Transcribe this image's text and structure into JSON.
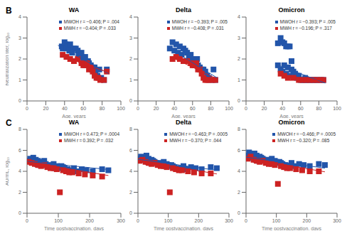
{
  "chart_data": [
    {
      "type": "scatter",
      "title": "WA",
      "annotations": [
        "B"
      ],
      "x_label": "Age, years",
      "y_label": "Neutralization titer, log₁₀",
      "xlim": [
        0,
        100
      ],
      "ylim": [
        0,
        4
      ],
      "xticks": [
        0,
        20,
        40,
        60,
        80,
        100
      ],
      "yticks": [
        0,
        1,
        2,
        3,
        4
      ],
      "grid": false,
      "legend": "upper right",
      "series": [
        {
          "name": "MWOH r = −0.406; P = .004",
          "color": "#2255aa",
          "marker": "square",
          "x": [
            37,
            38,
            40,
            41,
            42,
            44,
            45,
            46,
            48,
            50,
            52,
            54,
            55,
            57,
            58,
            60,
            61,
            62,
            63,
            64,
            65,
            66,
            67,
            68,
            69,
            70,
            72,
            73,
            75,
            77,
            79,
            82,
            85
          ],
          "values": [
            2.6,
            2.5,
            2.8,
            2.7,
            2.5,
            2.6,
            2.4,
            2.7,
            2.3,
            2.5,
            2.5,
            2.4,
            2.2,
            2.1,
            2.3,
            2.0,
            1.9,
            2.1,
            1.8,
            1.7,
            1.9,
            1.8,
            1.6,
            1.7,
            1.5,
            1.6,
            1.6,
            1.4,
            1.2,
            1.5,
            1.1,
            1.0,
            1.5
          ]
        },
        {
          "name": "MWH r = −0.404; P = .033",
          "color": "#cc2222",
          "marker": "square",
          "x": [
            38,
            42,
            46,
            50,
            54,
            58,
            60,
            62,
            64,
            66,
            68,
            70,
            72,
            74,
            76,
            78,
            82,
            85
          ],
          "values": [
            2.2,
            2.1,
            2.0,
            1.9,
            2.0,
            1.8,
            1.7,
            1.7,
            1.8,
            1.5,
            1.6,
            1.4,
            1.2,
            1.1,
            1.1,
            1.0,
            1.0,
            1.4
          ]
        },
        {
          "type": "line",
          "color": "#2255aa",
          "x": [
            33,
            87
          ],
          "values": [
            2.65,
            1.3
          ]
        },
        {
          "type": "line",
          "color": "#cc2222",
          "x": [
            36,
            87
          ],
          "values": [
            2.15,
            1.35
          ]
        }
      ]
    },
    {
      "type": "scatter",
      "title": "Delta",
      "x_label": "Age, years",
      "xlim": [
        0,
        100
      ],
      "ylim": [
        0,
        4
      ],
      "xticks": [
        0,
        20,
        40,
        60,
        80,
        100
      ],
      "yticks": [
        0,
        1,
        2,
        3,
        4
      ],
      "grid": false,
      "legend": "upper right",
      "series": [
        {
          "name": "MWOH r = −0.393; P = .005",
          "color": "#2255aa",
          "marker": "square",
          "x": [
            35,
            38,
            40,
            42,
            44,
            46,
            48,
            50,
            52,
            54,
            56,
            58,
            60,
            62,
            64,
            65,
            66,
            68,
            70,
            72,
            74,
            76,
            78,
            80,
            83,
            85
          ],
          "values": [
            2.5,
            2.8,
            2.4,
            2.7,
            2.3,
            2.6,
            2.2,
            2.5,
            2.4,
            2.3,
            2.1,
            2.2,
            2.0,
            1.9,
            1.8,
            2.0,
            1.7,
            1.6,
            1.5,
            1.5,
            1.4,
            1.2,
            1.1,
            1.0,
            1.5,
            1.0
          ]
        },
        {
          "name": "MWH r = −0.408; P = .031",
          "color": "#cc2222",
          "marker": "square",
          "x": [
            38,
            42,
            46,
            50,
            54,
            58,
            60,
            62,
            64,
            66,
            68,
            70,
            72,
            74,
            76,
            78,
            82,
            85
          ],
          "values": [
            2.0,
            2.1,
            2.0,
            1.9,
            1.9,
            1.8,
            1.7,
            1.7,
            1.8,
            1.5,
            1.5,
            1.3,
            1.1,
            1.0,
            1.0,
            1.0,
            1.0,
            1.0
          ]
        },
        {
          "type": "line",
          "color": "#2255aa",
          "x": [
            33,
            87
          ],
          "values": [
            2.55,
            1.1
          ]
        },
        {
          "type": "line",
          "color": "#cc2222",
          "x": [
            36,
            87
          ],
          "values": [
            2.1,
            1.05
          ]
        }
      ]
    },
    {
      "type": "scatter",
      "title": "Omicron",
      "x_label": "Age, years",
      "xlim": [
        0,
        100
      ],
      "ylim": [
        0,
        4
      ],
      "xticks": [
        0,
        20,
        40,
        60,
        80,
        100
      ],
      "yticks": [
        0,
        1,
        2,
        3,
        4
      ],
      "grid": false,
      "legend": "upper right",
      "series": [
        {
          "name": "MWOH r = −0.393; P = .005",
          "color": "#2255aa",
          "marker": "square",
          "x": [
            35,
            38,
            40,
            42,
            44,
            46,
            48,
            50,
            52,
            54,
            56,
            58,
            60,
            62,
            64,
            65,
            66,
            68,
            70,
            72,
            74,
            76,
            78,
            80,
            83,
            85,
            35,
            38,
            40,
            42,
            44,
            46,
            48,
            50
          ],
          "values": [
            1.7,
            1.5,
            1.4,
            1.7,
            1.3,
            1.6,
            1.2,
            1.5,
            1.4,
            1.3,
            1.1,
            1.2,
            1.0,
            1.0,
            1.0,
            1.1,
            1.0,
            1.0,
            1.0,
            1.0,
            1.0,
            1.0,
            1.0,
            1.0,
            1.0,
            1.0,
            2.75,
            3.0,
            2.8,
            2.75,
            2.6,
            2.6,
            2.6,
            1.9
          ]
        },
        {
          "name": "MWH r = −0.196; P = .317",
          "color": "#cc2222",
          "marker": "square",
          "x": [
            38,
            42,
            46,
            52,
            58,
            62,
            66,
            70,
            74,
            78,
            82,
            85
          ],
          "values": [
            1.3,
            1.2,
            1.1,
            1.1,
            1.0,
            1.0,
            1.0,
            1.0,
            1.0,
            1.0,
            1.0,
            1.0
          ]
        },
        {
          "type": "line",
          "color": "#2255aa",
          "x": [
            33,
            87
          ],
          "values": [
            1.75,
            0.85
          ]
        },
        {
          "type": "line",
          "color": "#cc2222",
          "x": [
            36,
            87
          ],
          "values": [
            1.25,
            0.95
          ]
        }
      ]
    },
    {
      "type": "scatter",
      "title": "WA",
      "annotations": [
        "C"
      ],
      "x_label": "Time postvaccination, days",
      "y_label": "AU/mL, log₁₀",
      "xlim": [
        0,
        300
      ],
      "ylim": [
        0,
        8
      ],
      "xticks": [
        0,
        100,
        200,
        300
      ],
      "yticks": [
        0,
        2,
        4,
        6,
        8
      ],
      "grid": false,
      "legend": "upper right",
      "series": [
        {
          "name": "MWOH r = 0.473; P = .0004",
          "color": "#2255aa",
          "marker": "square",
          "x": [
            5,
            10,
            15,
            20,
            25,
            28,
            32,
            35,
            40,
            45,
            50,
            55,
            60,
            65,
            70,
            75,
            80,
            85,
            90,
            95,
            100,
            105,
            110,
            115,
            120,
            130,
            140,
            150,
            160,
            175,
            190,
            210,
            240,
            260
          ],
          "values": [
            5.0,
            5.2,
            4.9,
            5.3,
            4.8,
            5.1,
            4.7,
            5.0,
            4.6,
            4.9,
            4.8,
            5.0,
            4.7,
            4.5,
            4.6,
            4.4,
            4.5,
            4.7,
            4.3,
            4.5,
            4.4,
            4.3,
            4.5,
            4.4,
            4.3,
            4.2,
            4.1,
            4.3,
            4.0,
            4.2,
            4.1,
            4.0,
            4.2,
            4.1
          ]
        },
        {
          "name": "MWH r = 0.392; P = .032",
          "color": "#cc2222",
          "marker": "square",
          "x": [
            5,
            15,
            25,
            35,
            45,
            55,
            65,
            75,
            85,
            95,
            115,
            125,
            135,
            145,
            165,
            185,
            210,
            240,
            105
          ],
          "values": [
            4.9,
            4.8,
            4.7,
            4.6,
            4.5,
            4.6,
            4.4,
            4.3,
            4.3,
            4.2,
            4.1,
            4.0,
            3.9,
            3.9,
            3.8,
            3.7,
            3.6,
            3.5,
            2.0
          ]
        },
        {
          "type": "line",
          "color": "#2255aa",
          "x": [
            0,
            260
          ],
          "values": [
            4.95,
            4.17
          ]
        },
        {
          "type": "line",
          "color": "#cc2222",
          "x": [
            0,
            260
          ],
          "values": [
            4.9,
            3.6
          ]
        }
      ]
    },
    {
      "type": "scatter",
      "title": "Delta",
      "x_label": "Time postvaccination, days",
      "xlim": [
        0,
        300
      ],
      "ylim": [
        0,
        8
      ],
      "xticks": [
        0,
        100,
        200,
        300
      ],
      "yticks": [
        0,
        2,
        4,
        6,
        8
      ],
      "grid": false,
      "legend": "upper right",
      "series": [
        {
          "name": "MWOH r = −0.463; P = .0005",
          "color": "#2255aa",
          "marker": "square",
          "x": [
            5,
            10,
            15,
            20,
            25,
            28,
            32,
            35,
            40,
            45,
            50,
            55,
            60,
            65,
            70,
            75,
            80,
            85,
            90,
            95,
            100,
            105,
            110,
            115,
            120,
            130,
            140,
            150,
            160,
            175,
            190,
            210,
            240,
            260
          ],
          "values": [
            5.2,
            5.4,
            5.1,
            5.3,
            5.0,
            5.5,
            4.9,
            5.2,
            4.8,
            5.1,
            5.0,
            4.9,
            4.8,
            4.7,
            4.8,
            4.6,
            4.7,
            4.9,
            4.5,
            4.7,
            4.6,
            4.5,
            4.6,
            4.5,
            4.4,
            4.3,
            4.3,
            4.5,
            4.2,
            4.4,
            4.3,
            4.2,
            4.4,
            4.3
          ]
        },
        {
          "name": "MWH r = −0.370; P = .044",
          "color": "#cc2222",
          "marker": "square",
          "x": [
            5,
            15,
            25,
            35,
            45,
            55,
            65,
            75,
            85,
            95,
            115,
            125,
            135,
            145,
            165,
            185,
            210,
            240,
            105
          ],
          "values": [
            5.0,
            5.1,
            4.9,
            4.8,
            4.7,
            4.8,
            4.6,
            4.5,
            4.5,
            4.4,
            4.3,
            4.2,
            4.1,
            4.1,
            4.0,
            3.9,
            3.8,
            3.8,
            2.0
          ]
        },
        {
          "type": "line",
          "color": "#2255aa",
          "x": [
            0,
            260
          ],
          "values": [
            5.15,
            4.1
          ]
        },
        {
          "type": "line",
          "color": "#cc2222",
          "x": [
            0,
            260
          ],
          "values": [
            5.05,
            3.75
          ]
        }
      ]
    },
    {
      "type": "scatter",
      "title": "Omicron",
      "x_label": "Time postvaccination, days",
      "xlim": [
        0,
        300
      ],
      "ylim": [
        0,
        8
      ],
      "xticks": [
        0,
        100,
        200,
        300
      ],
      "yticks": [
        0,
        2,
        4,
        6,
        8
      ],
      "grid": false,
      "legend": "upper right",
      "series": [
        {
          "name": "MWOH r = −0.466; P = .0005",
          "color": "#2255aa",
          "marker": "square",
          "x": [
            5,
            10,
            15,
            20,
            25,
            28,
            32,
            35,
            40,
            45,
            50,
            55,
            60,
            65,
            70,
            75,
            80,
            85,
            90,
            95,
            100,
            105,
            110,
            115,
            120,
            130,
            140,
            150,
            160,
            175,
            190,
            210,
            240,
            260
          ],
          "values": [
            5.5,
            5.8,
            5.3,
            5.6,
            5.2,
            5.7,
            5.1,
            5.5,
            5.0,
            5.4,
            5.3,
            5.2,
            5.1,
            5.0,
            5.1,
            4.9,
            5.0,
            5.2,
            4.8,
            5.0,
            4.9,
            4.8,
            4.9,
            4.8,
            4.7,
            4.6,
            4.5,
            4.8,
            4.5,
            4.7,
            4.6,
            4.5,
            4.7,
            4.6
          ]
        },
        {
          "name": "MWH r = −0.320; P = .085",
          "color": "#cc2222",
          "marker": "square",
          "x": [
            5,
            15,
            25,
            35,
            45,
            55,
            65,
            75,
            85,
            95,
            115,
            125,
            135,
            145,
            165,
            185,
            210,
            240,
            105
          ],
          "values": [
            5.2,
            5.4,
            5.1,
            5.0,
            4.9,
            5.0,
            4.8,
            4.7,
            4.7,
            4.6,
            4.5,
            4.4,
            4.3,
            4.3,
            4.2,
            4.1,
            4.0,
            4.0,
            2.8
          ]
        },
        {
          "type": "line",
          "color": "#2255aa",
          "x": [
            0,
            260
          ],
          "values": [
            5.35,
            4.3
          ]
        },
        {
          "type": "line",
          "color": "#cc2222",
          "x": [
            0,
            260
          ],
          "values": [
            5.25,
            3.95
          ]
        }
      ]
    }
  ]
}
